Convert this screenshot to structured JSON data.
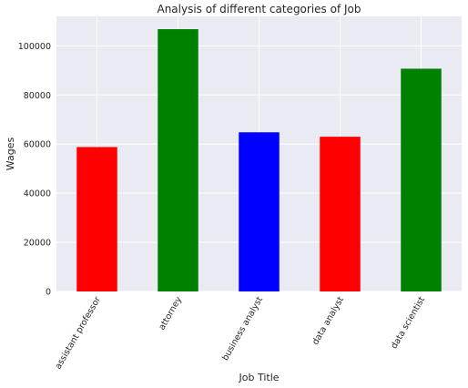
{
  "chart_data": {
    "type": "bar",
    "title": "Analysis of different categories of Job",
    "xlabel": "Job Title",
    "ylabel": "Wages",
    "categories": [
      "assistant professor",
      "attorney",
      "business analyst",
      "data analyst",
      "data scientist"
    ],
    "values": [
      58800,
      106800,
      64800,
      63000,
      90700
    ],
    "bar_colors": [
      "#ff0000",
      "#008000",
      "#0000ff",
      "#ff0000",
      "#008000"
    ],
    "ylim": [
      0,
      112000
    ],
    "yticks": [
      0,
      20000,
      40000,
      60000,
      80000,
      100000
    ],
    "ytick_labels": [
      "0",
      "20000",
      "40000",
      "60000",
      "80000",
      "100000"
    ],
    "grid": true,
    "background_color": "#eaeaf2",
    "legend": "none"
  }
}
